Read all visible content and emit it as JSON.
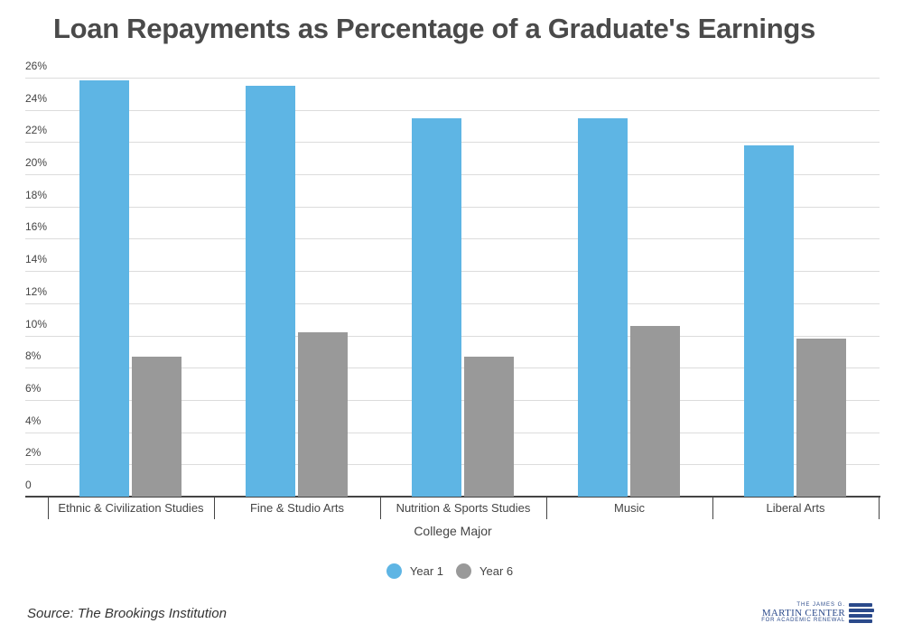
{
  "title": "Loan Repayments as Percentage of a Graduate's Earnings",
  "source": "Source: The Brookings Institution",
  "logo": {
    "line1": "THE JAMES G.",
    "line2": "MARTIN CENTER",
    "line3": "FOR ACADEMIC RENEWAL"
  },
  "colors": {
    "year1": "#5eb5e4",
    "year6": "#999999",
    "text": "#444444",
    "grid": "#dcdcdc"
  },
  "yticks": [
    "0",
    "2%",
    "4%",
    "6%",
    "8%",
    "10%",
    "12%",
    "14%",
    "16%",
    "18%",
    "20%",
    "22%",
    "24%",
    "26%"
  ],
  "chart_data": {
    "type": "bar",
    "title": "Loan Repayments as Percentage of a Graduate's Earnings",
    "xlabel": "College Major",
    "ylabel": "",
    "ylim": [
      0,
      26
    ],
    "grid": true,
    "legend_position": "bottom",
    "categories": [
      "Ethnic & Civilization Studies",
      "Fine & Studio Arts",
      "Nutrition & Sports Studies",
      "Music",
      "Liberal Arts"
    ],
    "series": [
      {
        "name": "Year 1",
        "values": [
          25.8,
          25.5,
          23.5,
          23.5,
          21.8
        ]
      },
      {
        "name": "Year 6",
        "values": [
          8.7,
          10.2,
          8.7,
          10.6,
          9.8
        ]
      }
    ]
  },
  "legend": [
    {
      "label": "Year 1"
    },
    {
      "label": "Year 6"
    }
  ]
}
